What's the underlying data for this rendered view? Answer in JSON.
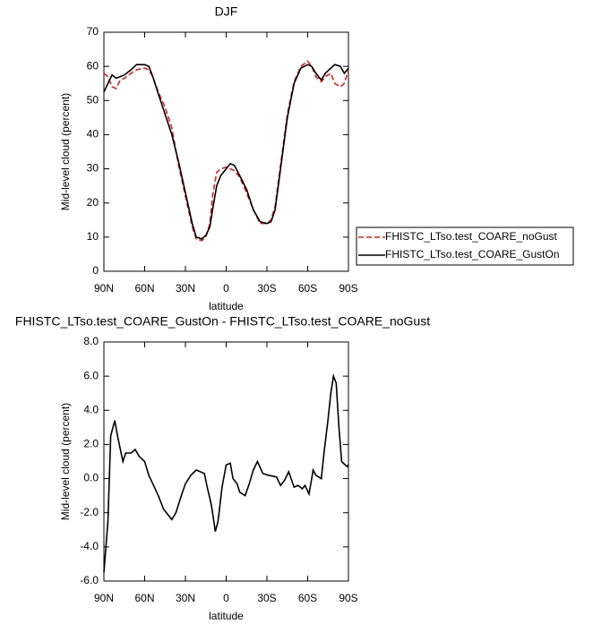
{
  "chart_data": [
    {
      "type": "line",
      "title": "DJF",
      "xlabel": "latitude",
      "ylabel": "Mid-level cloud (percent)",
      "x": [
        90,
        87,
        84,
        81,
        78,
        75,
        70,
        66,
        60,
        57,
        54,
        50,
        45,
        40,
        35,
        30,
        25,
        22,
        18,
        15,
        12,
        10,
        7,
        4,
        0,
        -3,
        -6,
        -10,
        -15,
        -20,
        -25,
        -30,
        -33,
        -36,
        -40,
        -45,
        -50,
        -55,
        -60,
        -63,
        -66,
        -70,
        -73,
        -77,
        -80,
        -84,
        -87,
        -90
      ],
      "xlim": [
        90,
        -90
      ],
      "xticks": [
        {
          "value": 90,
          "label": "90N"
        },
        {
          "value": 60,
          "label": "60N"
        },
        {
          "value": 30,
          "label": "30N"
        },
        0,
        {
          "value": -30,
          "label": "30S"
        },
        {
          "value": -60,
          "label": "60S"
        },
        {
          "value": -90,
          "label": "90S"
        }
      ],
      "ylim": [
        0,
        70
      ],
      "yticks": [
        0,
        10,
        20,
        30,
        40,
        50,
        60,
        70
      ],
      "legend": "right",
      "series": [
        {
          "name": "FHISTC_LTso.test_COARE_noGust",
          "color": "#e41a1c",
          "style": "dashed",
          "values": [
            58,
            57,
            54,
            53.5,
            56,
            56.5,
            58,
            59,
            59.5,
            59,
            57,
            52.5,
            48,
            42,
            31,
            22,
            13,
            9.5,
            9,
            10,
            14,
            22,
            29,
            30,
            30.5,
            30,
            29.5,
            27.5,
            23,
            18,
            14,
            14,
            15,
            19,
            31,
            46,
            55.5,
            60,
            61.5,
            60,
            57,
            55.5,
            57,
            58,
            55,
            54,
            55,
            59
          ]
        },
        {
          "name": "FHISTC_LTso.test_COARE_GustOn",
          "color": "#000000",
          "style": "solid",
          "values": [
            52.5,
            55,
            57.5,
            56.5,
            57,
            57.5,
            59,
            60.5,
            60.5,
            60,
            57,
            52,
            46,
            40,
            32,
            23,
            14,
            10,
            9.5,
            10.5,
            13,
            18,
            25,
            28,
            30,
            31.5,
            31,
            28,
            24,
            18,
            14.5,
            14,
            14.5,
            18,
            30,
            45,
            55,
            59.5,
            60.5,
            60,
            58,
            56,
            58,
            59.5,
            60.5,
            60,
            58,
            59.5
          ]
        }
      ]
    },
    {
      "type": "line",
      "title": "FHISTC_LTso.test_COARE_GustOn - FHISTC_LTso.test_COARE_noGust",
      "xlabel": "latitude",
      "ylabel": "Mid-level cloud (percent)",
      "x": [
        90,
        87,
        85,
        82,
        80,
        76,
        74,
        70,
        67,
        64,
        60,
        57,
        54,
        50,
        46,
        40,
        37,
        33,
        30,
        26,
        22,
        16,
        14,
        11,
        10,
        8,
        6,
        3,
        0,
        -3,
        -5,
        -8,
        -10,
        -14,
        -17,
        -20,
        -23,
        -27,
        -31,
        -37,
        -40,
        -43,
        -46,
        -50,
        -53,
        -56,
        -58,
        -61,
        -64,
        -66,
        -70,
        -72,
        -75,
        -77,
        -79,
        -81,
        -83,
        -85,
        -89,
        -90
      ],
      "xlim": [
        90,
        -90
      ],
      "xticks": [
        {
          "value": 90,
          "label": "90N"
        },
        {
          "value": 60,
          "label": "60N"
        },
        {
          "value": 30,
          "label": "30N"
        },
        0,
        {
          "value": -30,
          "label": "30S"
        },
        {
          "value": -60,
          "label": "60S"
        },
        {
          "value": -90,
          "label": "90S"
        }
      ],
      "ylim": [
        -6,
        8
      ],
      "yticks": [
        {
          "value": -6,
          "label": "-6.0"
        },
        {
          "value": -4,
          "label": "-4.0"
        },
        {
          "value": -2,
          "label": "-2.0"
        },
        {
          "value": 0,
          "label": "0.0"
        },
        {
          "value": 2,
          "label": "2.0"
        },
        {
          "value": 4,
          "label": "4.0"
        },
        {
          "value": 6,
          "label": "6.0"
        },
        {
          "value": 8,
          "label": "8.0"
        }
      ],
      "series": [
        {
          "color": "#000000",
          "style": "solid",
          "values": [
            -5.5,
            -2.5,
            2.5,
            3.4,
            2.5,
            1.0,
            1.5,
            1.5,
            1.7,
            1.3,
            1.0,
            0.2,
            -0.3,
            -1.0,
            -1.8,
            -2.4,
            -2.0,
            -1.0,
            -0.3,
            0.2,
            0.5,
            0.3,
            -0.5,
            -1.5,
            -2.0,
            -3.1,
            -2.5,
            -0.5,
            0.8,
            0.9,
            0.0,
            -0.3,
            -0.8,
            -1.0,
            -0.3,
            0.5,
            1.0,
            0.3,
            0.2,
            0.1,
            -0.4,
            -0.1,
            0.4,
            -0.5,
            -0.4,
            -0.6,
            -0.4,
            -0.9,
            0.5,
            0.2,
            0.0,
            1.5,
            3.5,
            5.0,
            6.0,
            5.6,
            3.0,
            1.0,
            0.7,
            0.8
          ]
        }
      ]
    }
  ]
}
